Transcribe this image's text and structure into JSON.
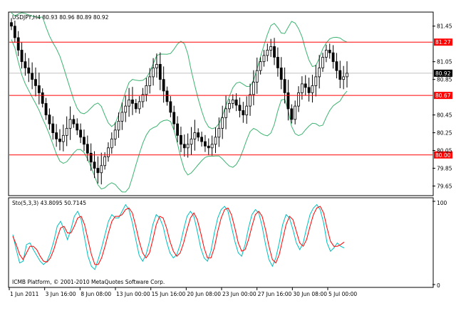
{
  "main_panel": {
    "header": "USDJPY,H4  80.93 80.96 80.89 80.92",
    "price_ticks": [
      "81.45",
      "81.05",
      "80.85",
      "80.45",
      "80.25",
      "80.05",
      "79.85",
      "79.65"
    ],
    "levels": [
      {
        "label": "81.27",
        "value": 81.27
      },
      {
        "label": "80.67",
        "value": 80.67
      },
      {
        "label": "80.00",
        "value": 80.0
      }
    ],
    "current_price": {
      "label": "80.92",
      "value": 80.92
    }
  },
  "stoch_panel": {
    "header": "Sto(5,3,3) 43.8095 50.7145",
    "ticks": [
      "100",
      "0"
    ],
    "copyright": "ICMB Platform, © 2001-2010 MetaQuotes Software Corp."
  },
  "time_axis": {
    "labels": [
      "1 Jun 2011",
      "3 Jun 16:00",
      "8 Jun 08:00",
      "13 Jun 00:00",
      "15 Jun 16:00",
      "20 Jun 08:00",
      "23 Jun 00:00",
      "27 Jun 16:00",
      "30 Jun 08:00",
      "5 Jul 00:00"
    ]
  },
  "colors": {
    "bollinger": "#3cb371",
    "level_line": "#ff0000",
    "stoch_main": "#00c0c0",
    "stoch_signal": "#ff0000",
    "candle": "#000000"
  },
  "chart_data": [
    {
      "type": "candlestick",
      "title": "USDJPY,H4",
      "ylim": [
        79.55,
        81.6
      ],
      "closes": [
        81.45,
        81.32,
        81.18,
        81.05,
        80.98,
        80.92,
        80.85,
        80.78,
        80.7,
        80.58,
        80.45,
        80.35,
        80.25,
        80.18,
        80.15,
        80.22,
        80.3,
        80.4,
        80.35,
        80.28,
        80.2,
        80.12,
        80.02,
        79.92,
        79.85,
        79.8,
        79.88,
        79.98,
        80.08,
        80.18,
        80.28,
        80.38,
        80.48,
        80.55,
        80.62,
        80.58,
        80.52,
        80.6,
        80.68,
        80.78,
        80.88,
        80.98,
        81.02,
        80.85,
        80.72,
        80.6,
        80.48,
        80.35,
        80.22,
        80.12,
        80.08,
        80.12,
        80.18,
        80.25,
        80.2,
        80.15,
        80.1,
        80.08,
        80.12,
        80.2,
        80.3,
        80.42,
        80.52,
        80.58,
        80.62,
        80.56,
        80.5,
        80.45,
        80.55,
        80.68,
        80.82,
        80.95,
        81.05,
        81.12,
        81.18,
        81.22,
        81.1,
        80.98,
        80.85,
        80.7,
        80.52,
        80.4,
        80.55,
        80.7,
        80.8,
        80.76,
        80.7,
        80.78,
        80.88,
        80.98,
        81.1,
        81.18,
        81.15,
        81.05,
        80.95,
        80.85,
        80.88,
        80.92
      ]
    },
    {
      "type": "line",
      "title": "Sto(5,3,3)",
      "ylim": [
        0,
        100
      ],
      "series": [
        {
          "values": [
            60,
            42,
            26,
            28,
            48,
            50,
            42,
            35,
            28,
            24,
            28,
            38,
            52,
            70,
            76,
            66,
            54,
            66,
            82,
            88,
            78,
            56,
            34,
            22,
            18,
            30,
            44,
            60,
            76,
            84,
            80,
            80,
            88,
            96,
            90,
            74,
            54,
            35,
            28,
            36,
            52,
            72,
            84,
            80,
            70,
            52,
            38,
            32,
            36,
            48,
            66,
            82,
            88,
            82,
            64,
            44,
            32,
            28,
            40,
            62,
            80,
            90,
            94,
            88,
            70,
            52,
            38,
            34,
            48,
            68,
            84,
            90,
            86,
            70,
            48,
            30,
            22,
            32,
            50,
            72,
            84,
            80,
            66,
            50,
            42,
            50,
            68,
            84,
            92,
            96,
            90,
            74,
            50,
            40,
            44,
            50,
            46,
            44
          ]
        },
        {
          "values": [
            58,
            48,
            36,
            30,
            38,
            46,
            46,
            42,
            34,
            28,
            27,
            32,
            42,
            56,
            68,
            70,
            62,
            62,
            70,
            80,
            82,
            72,
            54,
            36,
            24,
            24,
            32,
            46,
            62,
            76,
            82,
            82,
            84,
            90,
            92,
            86,
            70,
            52,
            38,
            32,
            38,
            54,
            72,
            82,
            80,
            68,
            52,
            40,
            34,
            38,
            50,
            66,
            80,
            86,
            78,
            62,
            44,
            32,
            32,
            44,
            64,
            80,
            90,
            92,
            84,
            68,
            50,
            40,
            42,
            54,
            70,
            84,
            88,
            82,
            66,
            46,
            30,
            26,
            36,
            54,
            72,
            82,
            78,
            64,
            50,
            46,
            54,
            70,
            84,
            92,
            94,
            86,
            68,
            52,
            46,
            46,
            48,
            51
          ]
        }
      ]
    }
  ]
}
